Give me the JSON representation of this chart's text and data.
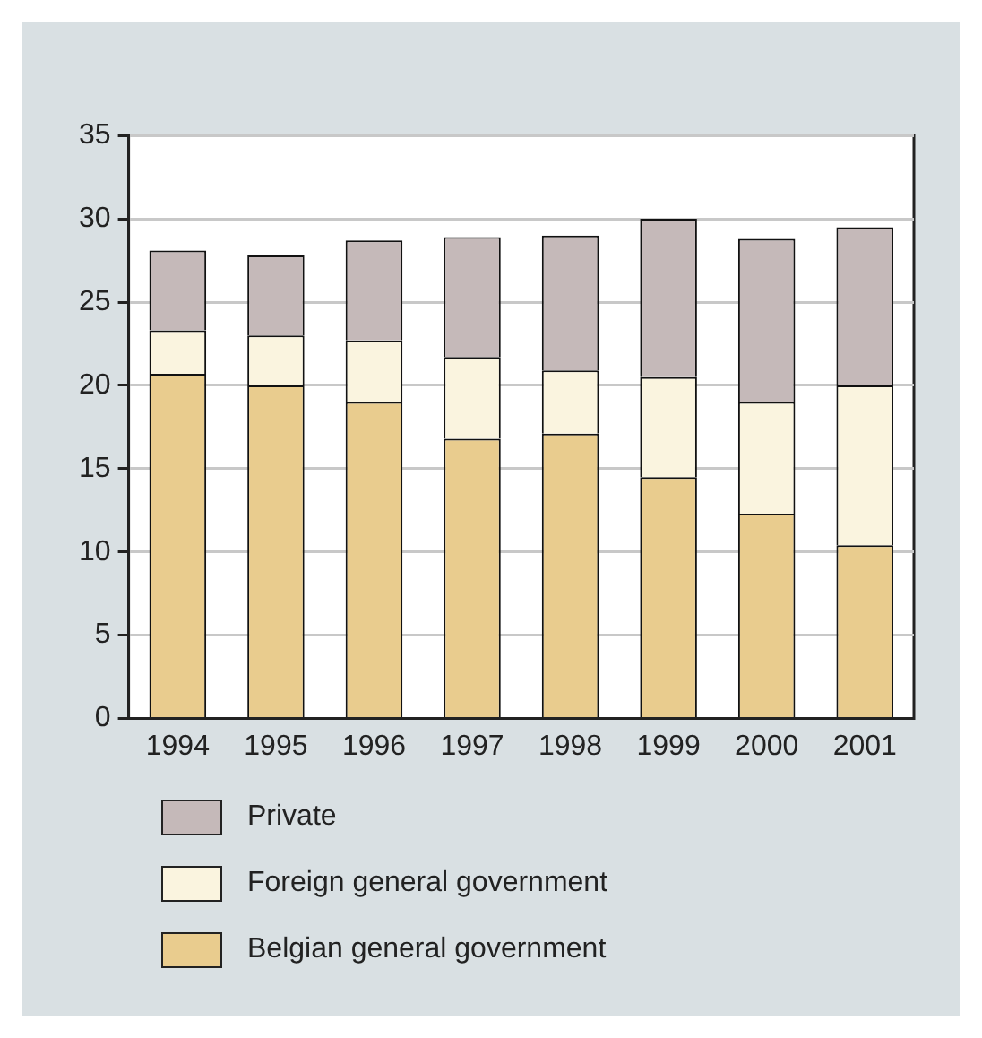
{
  "chart_data": {
    "type": "bar",
    "stacked": true,
    "categories": [
      "1994",
      "1995",
      "1996",
      "1997",
      "1998",
      "1999",
      "2000",
      "2001"
    ],
    "series": [
      {
        "name": "Belgian general government",
        "color": "#e9cc8e",
        "values": [
          20.7,
          20.0,
          19.0,
          16.8,
          17.1,
          14.5,
          12.3,
          10.4
        ]
      },
      {
        "name": "Foreign general government",
        "color": "#faf4df",
        "values": [
          2.6,
          3.0,
          3.7,
          4.9,
          3.8,
          6.0,
          6.7,
          9.6
        ]
      },
      {
        "name": "Private",
        "color": "#c5b9b9",
        "values": [
          4.8,
          4.8,
          6.0,
          7.2,
          8.1,
          9.5,
          9.8,
          9.5
        ]
      }
    ],
    "ylim": [
      0,
      35
    ],
    "yticks": [
      0,
      5,
      10,
      15,
      20,
      25,
      30,
      35
    ],
    "grid": "y",
    "legend": "bottom"
  }
}
